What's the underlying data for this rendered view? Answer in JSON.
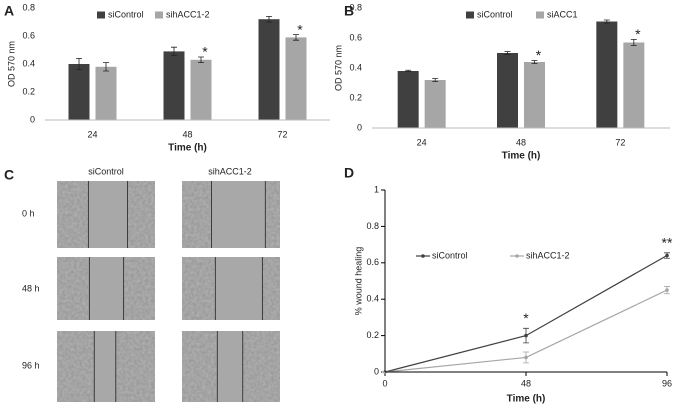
{
  "chart_data": [
    {
      "type": "bar",
      "panel": "A",
      "categories": [
        "24",
        "48",
        "72"
      ],
      "series": [
        {
          "name": "siControl",
          "color": "#404040",
          "values": [
            0.4,
            0.49,
            0.72
          ],
          "errors": [
            0.04,
            0.03,
            0.02
          ],
          "significance": [
            null,
            null,
            null
          ]
        },
        {
          "name": "sihACC1-2",
          "color": "#a6a6a6",
          "values": [
            0.38,
            0.43,
            0.59
          ],
          "errors": [
            0.03,
            0.02,
            0.02
          ],
          "significance": [
            null,
            "*",
            "*"
          ]
        }
      ],
      "ylim": [
        0,
        0.8
      ],
      "yticks": [
        0,
        0.2,
        0.4,
        0.6,
        0.8
      ],
      "xlabel": "Time (h)",
      "ylabel": "OD 570 nm",
      "legend": "top"
    },
    {
      "type": "bar",
      "panel": "B",
      "categories": [
        "24",
        "48",
        "72"
      ],
      "series": [
        {
          "name": "siControl",
          "color": "#404040",
          "values": [
            0.38,
            0.5,
            0.71
          ],
          "errors": [
            0.005,
            0.01,
            0.01
          ],
          "significance": [
            null,
            null,
            null
          ]
        },
        {
          "name": "siACC1",
          "color": "#a6a6a6",
          "values": [
            0.32,
            0.44,
            0.57
          ],
          "errors": [
            0.01,
            0.01,
            0.02
          ],
          "significance": [
            null,
            "*",
            "*"
          ]
        }
      ],
      "ylim": [
        0,
        0.8
      ],
      "yticks": [
        0,
        0.2,
        0.4,
        0.6,
        0.8
      ],
      "xlabel": "Time (h)",
      "ylabel": "OD 570 nm",
      "legend": "top"
    },
    {
      "type": "line",
      "panel": "D",
      "x": [
        0,
        48,
        96
      ],
      "xlim": [
        0,
        96
      ],
      "xticks": [
        0,
        48,
        96
      ],
      "series": [
        {
          "name": "siControl",
          "color": "#404040",
          "values": [
            0,
            0.2,
            0.64
          ],
          "errors": [
            0,
            0.04,
            0.015
          ]
        },
        {
          "name": "sihACC1-2",
          "color": "#a6a6a6",
          "values": [
            0,
            0.08,
            0.45
          ],
          "errors": [
            0,
            0.03,
            0.02
          ]
        }
      ],
      "annotations": [
        null,
        "*",
        "**"
      ],
      "ylim": [
        0,
        1
      ],
      "yticks": [
        0,
        0.2,
        0.4,
        0.6,
        0.8,
        1
      ],
      "xlabel": "Time (h)",
      "ylabel": "% wound healing",
      "legend": "left"
    }
  ],
  "panel_c": {
    "panel": "C",
    "columns": [
      "siControl",
      "sihACC1-2"
    ],
    "rows": [
      "0 h",
      "48 h",
      "96 h"
    ]
  }
}
